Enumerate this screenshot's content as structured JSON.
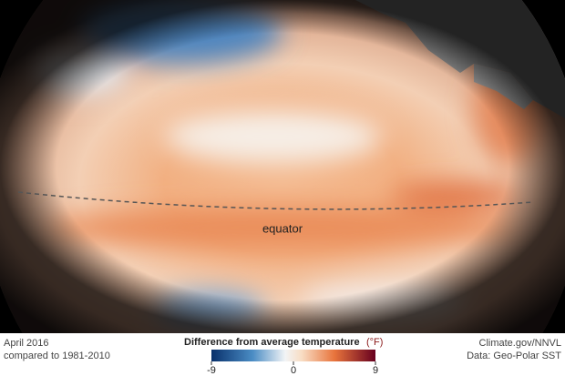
{
  "map": {
    "equator_label": "equator",
    "date": "April 2016",
    "baseline": "compared to 1981-2010",
    "legend": {
      "title": "Difference from average temperature",
      "unit": "(°F)",
      "ticks": [
        -9,
        0,
        9
      ]
    },
    "credit": "Climate.gov/NNVL",
    "source": "Data: Geo-Polar SST"
  }
}
